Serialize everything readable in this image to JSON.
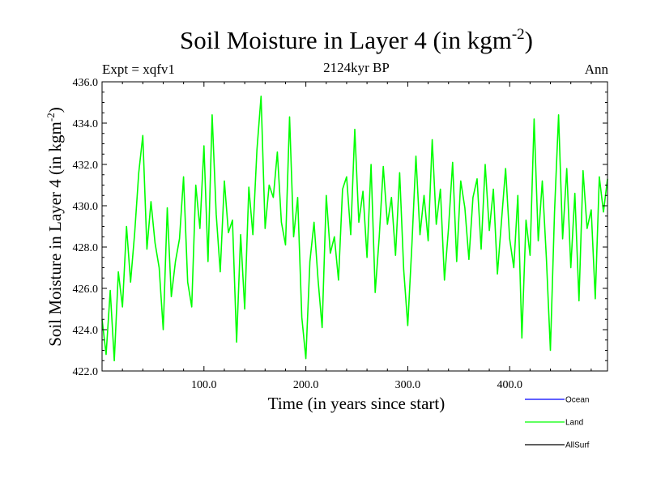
{
  "chart_data": {
    "type": "line",
    "title": "Soil Moisture in Layer 4 (in kgm",
    "title_sup": "-2",
    "title_tail": ")",
    "subtitle_left": "Expt = xqfv1",
    "subtitle_center": "2124kyr BP",
    "subtitle_right": "Ann",
    "xlabel": "Time (in years since start)",
    "ylabel": "Soil Moisture in Layer 4 (in kgm",
    "ylabel_sup": "-2",
    "ylabel_tail": ")",
    "xlim": [
      0,
      496
    ],
    "ylim": [
      422.0,
      436.0
    ],
    "x_ticks": [
      100,
      200,
      300,
      400
    ],
    "x_tick_labels": [
      "100.0",
      "200.0",
      "300.0",
      "400.0"
    ],
    "y_ticks": [
      422,
      424,
      426,
      428,
      430,
      432,
      434,
      436
    ],
    "y_tick_labels": [
      "422.0",
      "424.0",
      "426.0",
      "428.0",
      "430.0",
      "432.0",
      "434.0",
      "436.0"
    ],
    "series": [
      {
        "name": "Ocean",
        "color": "#0000ff",
        "x": [],
        "values": []
      },
      {
        "name": "Land",
        "color": "#00ff00",
        "x": [
          0,
          4,
          8,
          12,
          16,
          20,
          24,
          28,
          32,
          36,
          40,
          44,
          48,
          52,
          56,
          60,
          64,
          68,
          72,
          76,
          80,
          84,
          88,
          92,
          96,
          100,
          104,
          108,
          112,
          116,
          120,
          124,
          128,
          132,
          136,
          140,
          144,
          148,
          152,
          156,
          160,
          164,
          168,
          172,
          176,
          180,
          184,
          188,
          192,
          196,
          200,
          204,
          208,
          212,
          216,
          220,
          224,
          228,
          232,
          236,
          240,
          244,
          248,
          252,
          256,
          260,
          264,
          268,
          272,
          276,
          280,
          284,
          288,
          292,
          296,
          300,
          304,
          308,
          312,
          316,
          320,
          324,
          328,
          332,
          336,
          340,
          344,
          348,
          352,
          356,
          360,
          364,
          368,
          372,
          376,
          380,
          384,
          388,
          392,
          396,
          400,
          404,
          408,
          412,
          416,
          420,
          424,
          428,
          432,
          436,
          440,
          444,
          448,
          452,
          456,
          460,
          464,
          468,
          472,
          476,
          480,
          484,
          488,
          492,
          496
        ],
        "values": [
          424.5,
          422.8,
          425.9,
          422.5,
          426.8,
          425.1,
          429.0,
          426.3,
          428.7,
          431.6,
          433.4,
          427.9,
          430.2,
          428.2,
          427.0,
          424.0,
          429.9,
          425.6,
          427.3,
          428.4,
          431.4,
          426.3,
          425.1,
          431.0,
          428.9,
          432.9,
          427.3,
          434.4,
          429.6,
          426.8,
          431.2,
          428.7,
          429.3,
          423.4,
          428.6,
          425.0,
          430.9,
          428.6,
          432.7,
          435.3,
          428.9,
          431.0,
          430.4,
          432.6,
          429.2,
          428.1,
          434.3,
          428.5,
          430.4,
          424.6,
          422.6,
          427.3,
          429.2,
          426.4,
          424.1,
          430.5,
          427.7,
          428.5,
          426.4,
          430.8,
          431.4,
          428.6,
          433.7,
          429.2,
          430.7,
          427.5,
          432.0,
          425.8,
          428.5,
          431.9,
          429.1,
          430.4,
          427.6,
          431.6,
          426.9,
          424.2,
          428.1,
          432.4,
          428.6,
          430.5,
          428.3,
          433.2,
          429.1,
          430.8,
          426.4,
          428.9,
          432.1,
          427.3,
          431.2,
          429.9,
          427.4,
          430.4,
          431.3,
          427.9,
          432.0,
          428.8,
          430.8,
          426.7,
          429.3,
          431.8,
          428.4,
          427.0,
          430.5,
          423.6,
          429.3,
          427.6,
          434.2,
          428.3,
          431.2,
          427.5,
          423.0,
          429.7,
          434.4,
          428.4,
          431.8,
          427.0,
          430.6,
          425.4,
          431.7,
          428.9,
          429.8,
          425.5,
          431.4,
          429.7,
          431.3
        ]
      },
      {
        "name": "AllSurf",
        "color": "#000000",
        "x": [],
        "values": []
      }
    ],
    "legend": "bottom-right"
  }
}
